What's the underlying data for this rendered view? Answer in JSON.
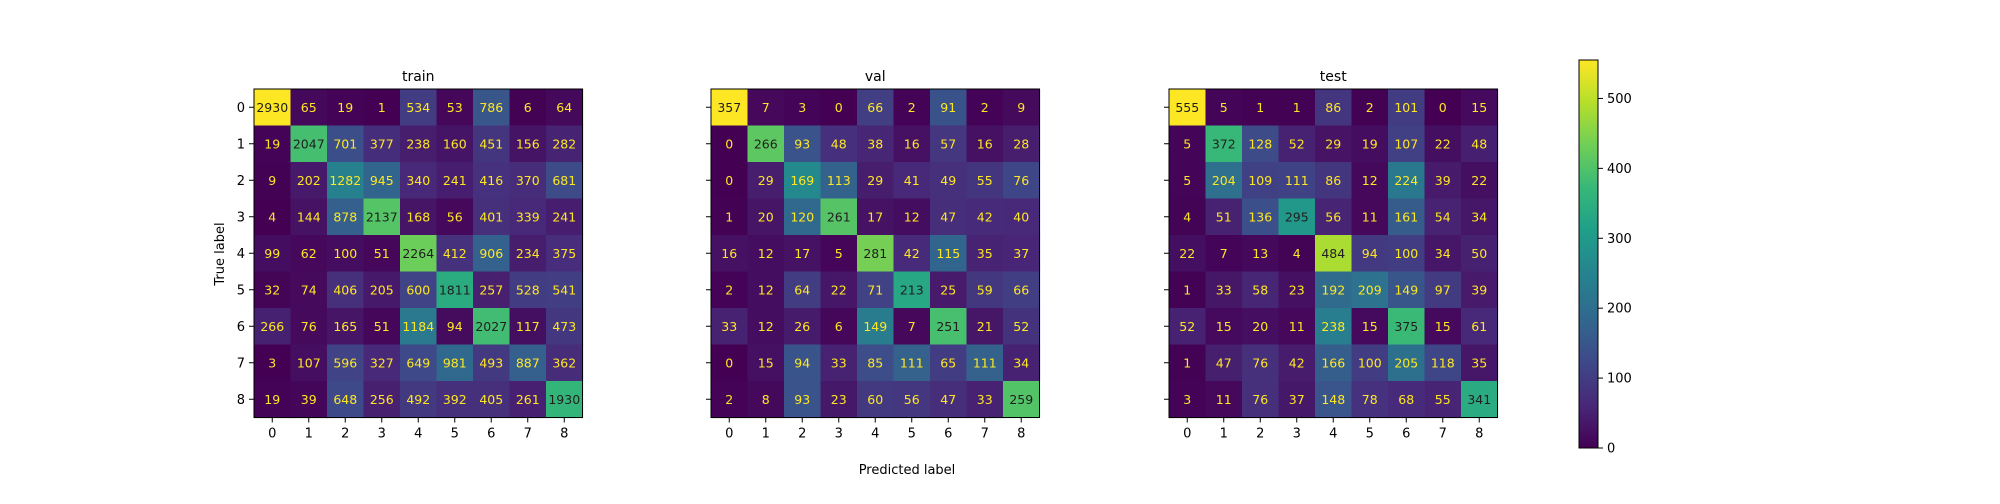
{
  "chart_data": {
    "type": "heatmap",
    "colormap": "viridis",
    "colors": {
      "text_on_dark": "#fde725",
      "text_on_light": "#1f1f1f",
      "cmap_stops": [
        "#440154",
        "#482878",
        "#3e4989",
        "#31688e",
        "#26828e",
        "#1f9e89",
        "#35b779",
        "#6ece58",
        "#b5de2b",
        "#fde725"
      ]
    },
    "xlabel": "Predicted label",
    "ylabel": "True label",
    "categories": [
      "0",
      "1",
      "2",
      "3",
      "4",
      "5",
      "6",
      "7",
      "8"
    ],
    "color_scale": {
      "min": 0,
      "max": 555,
      "ticks": [
        0,
        100,
        200,
        300,
        400,
        500
      ]
    },
    "panels": [
      {
        "title": "train",
        "matrix": [
          [
            2930,
            65,
            19,
            1,
            534,
            53,
            786,
            6,
            64
          ],
          [
            19,
            2047,
            701,
            377,
            238,
            160,
            451,
            156,
            282
          ],
          [
            9,
            202,
            1282,
            945,
            340,
            241,
            416,
            370,
            681
          ],
          [
            4,
            144,
            878,
            2137,
            168,
            56,
            401,
            339,
            241
          ],
          [
            99,
            62,
            100,
            51,
            2264,
            412,
            906,
            234,
            375
          ],
          [
            32,
            74,
            406,
            205,
            600,
            1811,
            257,
            528,
            541
          ],
          [
            266,
            76,
            165,
            51,
            1184,
            94,
            2027,
            117,
            473
          ],
          [
            3,
            107,
            596,
            327,
            649,
            981,
            493,
            887,
            362
          ],
          [
            19,
            39,
            648,
            256,
            492,
            392,
            405,
            261,
            1930
          ]
        ]
      },
      {
        "title": "val",
        "matrix": [
          [
            357,
            7,
            3,
            0,
            66,
            2,
            91,
            2,
            9
          ],
          [
            0,
            266,
            93,
            48,
            38,
            16,
            57,
            16,
            28
          ],
          [
            0,
            29,
            169,
            113,
            29,
            41,
            49,
            55,
            76
          ],
          [
            1,
            20,
            120,
            261,
            17,
            12,
            47,
            42,
            40
          ],
          [
            16,
            12,
            17,
            5,
            281,
            42,
            115,
            35,
            37
          ],
          [
            2,
            12,
            64,
            22,
            71,
            213,
            25,
            59,
            66
          ],
          [
            33,
            12,
            26,
            6,
            149,
            7,
            251,
            21,
            52
          ],
          [
            0,
            15,
            94,
            33,
            85,
            111,
            65,
            111,
            34
          ],
          [
            2,
            8,
            93,
            23,
            60,
            56,
            47,
            33,
            259
          ]
        ]
      },
      {
        "title": "test",
        "matrix": [
          [
            555,
            5,
            1,
            1,
            86,
            2,
            101,
            0,
            15
          ],
          [
            5,
            372,
            128,
            52,
            29,
            19,
            107,
            22,
            48
          ],
          [
            5,
            204,
            109,
            111,
            86,
            12,
            224,
            39,
            22
          ],
          [
            4,
            51,
            136,
            295,
            56,
            11,
            161,
            54,
            34
          ],
          [
            22,
            7,
            13,
            4,
            484,
            94,
            100,
            34,
            50
          ],
          [
            1,
            33,
            58,
            23,
            192,
            209,
            149,
            97,
            39
          ],
          [
            52,
            15,
            20,
            11,
            238,
            15,
            375,
            15,
            61
          ],
          [
            1,
            47,
            76,
            42,
            166,
            100,
            205,
            118,
            35
          ],
          [
            3,
            11,
            76,
            37,
            148,
            78,
            68,
            55,
            341
          ]
        ]
      }
    ]
  }
}
